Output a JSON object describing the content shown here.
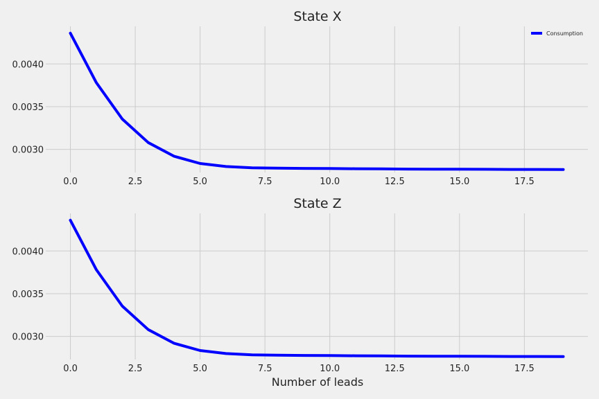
{
  "chart_data": [
    {
      "type": "line",
      "title": "State X",
      "xlabel": "",
      "ylabel": "",
      "x": [
        0,
        1,
        2,
        3,
        4,
        5,
        6,
        7,
        8,
        9,
        10,
        11,
        12,
        13,
        14,
        15,
        16,
        17,
        18,
        19
      ],
      "series": [
        {
          "name": "Consumption",
          "color": "#0000ff",
          "values": [
            0.00436,
            0.00378,
            0.003355,
            0.00308,
            0.00292,
            0.002835,
            0.0028,
            0.002785,
            0.00278,
            0.002778,
            0.002776,
            0.002774,
            0.002772,
            0.00277,
            0.002769,
            0.002768,
            0.002767,
            0.002766,
            0.002766,
            0.002765
          ]
        }
      ],
      "xlim": [
        -0.95,
        19.95
      ],
      "ylim": [
        0.00273,
        0.00444
      ],
      "xticks": [
        0,
        2.5,
        5,
        7.5,
        10,
        12.5,
        15,
        17.5
      ],
      "xtick_labels": [
        "0.0",
        "2.5",
        "5.0",
        "7.5",
        "10.0",
        "12.5",
        "15.0",
        "17.5"
      ],
      "yticks": [
        0.003,
        0.0035,
        0.004
      ],
      "ytick_labels": [
        "0.0030",
        "0.0035",
        "0.0040"
      ],
      "grid": true,
      "legend": "top-right"
    },
    {
      "type": "line",
      "title": "State Z",
      "xlabel": "Number of leads",
      "ylabel": "",
      "x": [
        0,
        1,
        2,
        3,
        4,
        5,
        6,
        7,
        8,
        9,
        10,
        11,
        12,
        13,
        14,
        15,
        16,
        17,
        18,
        19
      ],
      "series": [
        {
          "name": "",
          "color": "#0000ff",
          "values": [
            0.00436,
            0.00378,
            0.003355,
            0.00308,
            0.00292,
            0.002835,
            0.0028,
            0.002785,
            0.00278,
            0.002778,
            0.002776,
            0.002774,
            0.002772,
            0.00277,
            0.002769,
            0.002768,
            0.002767,
            0.002766,
            0.002766,
            0.002765
          ]
        }
      ],
      "xlim": [
        -0.95,
        19.95
      ],
      "ylim": [
        0.00273,
        0.00444
      ],
      "xticks": [
        0,
        2.5,
        5,
        7.5,
        10,
        12.5,
        15,
        17.5
      ],
      "xtick_labels": [
        "0.0",
        "2.5",
        "5.0",
        "7.5",
        "10.0",
        "12.5",
        "15.0",
        "17.5"
      ],
      "yticks": [
        0.003,
        0.0035,
        0.004
      ],
      "ytick_labels": [
        "0.0030",
        "0.0035",
        "0.0040"
      ],
      "grid": true,
      "legend": "none"
    }
  ],
  "colors": {
    "background": "#f0f0f0",
    "grid": "#cbcbcb",
    "line": "#0000ff"
  }
}
